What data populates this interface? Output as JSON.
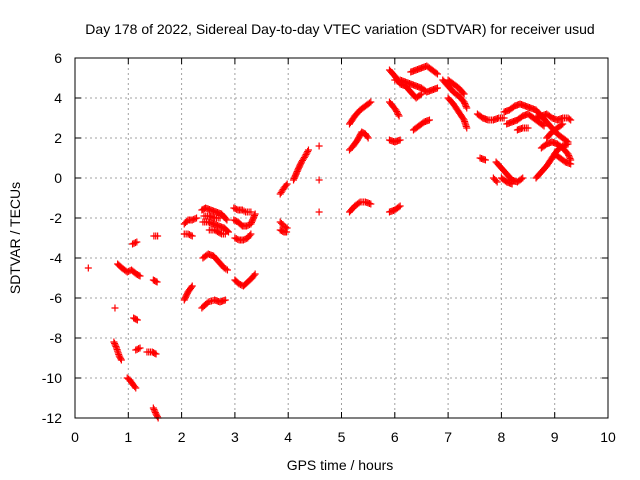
{
  "chart_data": {
    "type": "scatter",
    "title": "Day 178 of 2022, Sidereal Day-to-day VTEC variation (SDTVAR) for receiver usud",
    "xlabel": "GPS time / hours",
    "ylabel": "SDTVAR / TECUs",
    "xlim": [
      0,
      10
    ],
    "ylim": [
      -12,
      6
    ],
    "xticks": [
      "0",
      "1",
      "2",
      "3",
      "4",
      "5",
      "6",
      "7",
      "8",
      "9",
      "10"
    ],
    "yticks": [
      "-12",
      "-10",
      "-8",
      "-6",
      "-4",
      "-2",
      "0",
      "2",
      "4",
      "6"
    ],
    "grid": true,
    "marker": "+",
    "color": "#ff0000",
    "series": [
      {
        "name": "SDTVAR",
        "segments": [
          [
            [
              0.25,
              -4.5
            ]
          ],
          [
            [
              0.75,
              -6.5
            ]
          ],
          [
            [
              0.73,
              -8.2
            ],
            [
              0.78,
              -8.5
            ],
            [
              0.83,
              -8.9
            ],
            [
              0.87,
              -9.1
            ]
          ],
          [
            [
              0.8,
              -4.3
            ],
            [
              0.88,
              -4.5
            ],
            [
              0.98,
              -4.7
            ],
            [
              1.06,
              -4.6
            ],
            [
              1.15,
              -4.8
            ],
            [
              1.22,
              -4.9
            ]
          ],
          [
            [
              0.98,
              -10.0
            ],
            [
              1.03,
              -10.1
            ],
            [
              1.08,
              -10.3
            ],
            [
              1.14,
              -10.5
            ]
          ],
          [
            [
              1.1,
              -7.0
            ],
            [
              1.17,
              -7.1
            ]
          ],
          [
            [
              1.08,
              -3.3
            ],
            [
              1.16,
              -3.2
            ]
          ],
          [
            [
              1.14,
              -8.6
            ],
            [
              1.22,
              -8.5
            ]
          ],
          [
            [
              1.35,
              -8.7
            ],
            [
              1.45,
              -8.7
            ],
            [
              1.52,
              -8.8
            ]
          ],
          [
            [
              1.47,
              -11.5
            ],
            [
              1.52,
              -11.8
            ],
            [
              1.56,
              -12.0
            ]
          ],
          [
            [
              1.47,
              -5.1
            ],
            [
              1.54,
              -5.2
            ]
          ],
          [
            [
              1.48,
              -2.9
            ],
            [
              1.55,
              -2.9
            ]
          ],
          [
            [
              2.05,
              -6.1
            ],
            [
              2.12,
              -5.7
            ],
            [
              2.2,
              -5.4
            ]
          ],
          [
            [
              2.05,
              -2.3
            ],
            [
              2.12,
              -2.1
            ],
            [
              2.2,
              -2.1
            ],
            [
              2.28,
              -2.0
            ]
          ],
          [
            [
              2.05,
              -2.8
            ],
            [
              2.12,
              -2.8
            ],
            [
              2.2,
              -2.9
            ]
          ],
          [
            [
              2.38,
              -6.5
            ],
            [
              2.5,
              -6.2
            ],
            [
              2.62,
              -6.1
            ],
            [
              2.72,
              -6.2
            ],
            [
              2.82,
              -6.1
            ]
          ],
          [
            [
              2.4,
              -4.0
            ],
            [
              2.5,
              -3.8
            ],
            [
              2.6,
              -3.9
            ],
            [
              2.7,
              -4.2
            ],
            [
              2.8,
              -4.5
            ],
            [
              2.86,
              -4.6
            ]
          ],
          [
            [
              2.38,
              -1.6
            ],
            [
              2.45,
              -1.5
            ],
            [
              2.55,
              -1.6
            ],
            [
              2.65,
              -1.7
            ],
            [
              2.75,
              -1.8
            ],
            [
              2.85,
              -2.1
            ]
          ],
          [
            [
              2.4,
              -2.2
            ],
            [
              2.5,
              -2.2
            ],
            [
              2.6,
              -2.3
            ],
            [
              2.7,
              -2.4
            ],
            [
              2.8,
              -2.5
            ],
            [
              2.88,
              -2.7
            ]
          ],
          [
            [
              2.42,
              -1.9
            ],
            [
              2.52,
              -1.9
            ],
            [
              2.62,
              -2.0
            ],
            [
              2.72,
              -2.0
            ]
          ],
          [
            [
              2.52,
              -2.6
            ],
            [
              2.62,
              -2.6
            ],
            [
              2.75,
              -2.8
            ],
            [
              2.82,
              -2.8
            ]
          ],
          [
            [
              2.98,
              -1.5
            ],
            [
              3.06,
              -1.6
            ],
            [
              3.14,
              -1.6
            ],
            [
              3.2,
              -1.7
            ],
            [
              3.3,
              -1.7
            ]
          ],
          [
            [
              2.98,
              -2.1
            ],
            [
              3.06,
              -2.2
            ],
            [
              3.14,
              -2.4
            ],
            [
              3.22,
              -2.4
            ],
            [
              3.3,
              -2.3
            ],
            [
              3.38,
              -1.8
            ]
          ],
          [
            [
              3.0,
              -3.0
            ],
            [
              3.08,
              -3.1
            ],
            [
              3.16,
              -3.1
            ],
            [
              3.24,
              -3.0
            ],
            [
              3.3,
              -2.8
            ]
          ],
          [
            [
              3.0,
              -5.1
            ],
            [
              3.08,
              -5.3
            ],
            [
              3.16,
              -5.4
            ],
            [
              3.24,
              -5.2
            ],
            [
              3.32,
              -5.0
            ],
            [
              3.38,
              -4.8
            ]
          ],
          [
            [
              3.85,
              -0.8
            ],
            [
              3.92,
              -0.5
            ],
            [
              3.98,
              -0.3
            ]
          ],
          [
            [
              3.85,
              -2.2
            ],
            [
              3.92,
              -2.4
            ],
            [
              3.98,
              -2.5
            ]
          ],
          [
            [
              3.85,
              -2.6
            ],
            [
              3.92,
              -2.7
            ],
            [
              3.97,
              -2.7
            ]
          ],
          [
            [
              4.1,
              -0.1
            ],
            [
              4.18,
              0.4
            ],
            [
              4.25,
              0.8
            ],
            [
              4.32,
              1.1
            ],
            [
              4.38,
              1.4
            ]
          ],
          [
            [
              4.58,
              1.6
            ]
          ],
          [
            [
              4.58,
              -0.1
            ]
          ],
          [
            [
              4.58,
              -1.7
            ]
          ],
          [
            [
              5.15,
              1.4
            ],
            [
              5.22,
              1.6
            ],
            [
              5.3,
              1.9
            ],
            [
              5.38,
              2.3
            ],
            [
              5.45,
              2.2
            ],
            [
              5.5,
              2.0
            ]
          ],
          [
            [
              5.15,
              2.7
            ],
            [
              5.25,
              3.1
            ],
            [
              5.35,
              3.4
            ],
            [
              5.45,
              3.6
            ],
            [
              5.55,
              3.8
            ]
          ],
          [
            [
              5.15,
              -1.7
            ],
            [
              5.25,
              -1.4
            ],
            [
              5.35,
              -1.2
            ],
            [
              5.45,
              -1.2
            ],
            [
              5.55,
              -1.3
            ]
          ],
          [
            [
              5.9,
              1.9
            ],
            [
              6.0,
              1.8
            ],
            [
              6.1,
              1.9
            ]
          ],
          [
            [
              5.9,
              -1.7
            ],
            [
              6.0,
              -1.6
            ],
            [
              6.1,
              -1.4
            ]
          ],
          [
            [
              5.9,
              3.8
            ],
            [
              5.96,
              3.6
            ],
            [
              6.02,
              3.4
            ],
            [
              6.08,
              3.1
            ]
          ],
          [
            [
              5.9,
              5.4
            ],
            [
              6.0,
              5.1
            ],
            [
              6.1,
              4.7
            ],
            [
              6.2,
              4.6
            ],
            [
              6.3,
              4.3
            ],
            [
              6.4,
              4.0
            ],
            [
              6.5,
              4.2
            ]
          ],
          [
            [
              6.0,
              4.9
            ],
            [
              6.1,
              4.9
            ],
            [
              6.2,
              4.8
            ],
            [
              6.3,
              4.7
            ],
            [
              6.4,
              4.6
            ],
            [
              6.5,
              4.5
            ],
            [
              6.6,
              4.3
            ],
            [
              6.7,
              4.4
            ],
            [
              6.8,
              4.5
            ]
          ],
          [
            [
              6.3,
              5.3
            ],
            [
              6.4,
              5.4
            ],
            [
              6.5,
              5.5
            ],
            [
              6.6,
              5.6
            ],
            [
              6.7,
              5.4
            ],
            [
              6.8,
              5.2
            ]
          ],
          [
            [
              6.35,
              2.4
            ],
            [
              6.45,
              2.6
            ],
            [
              6.55,
              2.8
            ],
            [
              6.65,
              2.9
            ]
          ],
          [
            [
              6.9,
              4.9
            ],
            [
              7.0,
              4.6
            ],
            [
              7.1,
              4.3
            ],
            [
              7.2,
              4.1
            ],
            [
              7.3,
              3.8
            ],
            [
              7.35,
              3.5
            ]
          ],
          [
            [
              7.0,
              4.0
            ],
            [
              7.1,
              3.7
            ],
            [
              7.2,
              3.3
            ],
            [
              7.3,
              2.9
            ],
            [
              7.35,
              2.5
            ]
          ],
          [
            [
              7.0,
              4.9
            ],
            [
              7.1,
              4.7
            ],
            [
              7.2,
              4.5
            ],
            [
              7.3,
              4.2
            ]
          ],
          [
            [
              7.55,
              3.2
            ],
            [
              7.65,
              3.0
            ],
            [
              7.75,
              2.9
            ],
            [
              7.85,
              2.9
            ],
            [
              7.95,
              3.0
            ],
            [
              8.05,
              3.0
            ]
          ],
          [
            [
              7.6,
              1.0
            ],
            [
              7.7,
              0.9
            ]
          ],
          [
            [
              7.85,
              0.0
            ],
            [
              7.92,
              -0.2
            ]
          ],
          [
            [
              7.9,
              0.8
            ],
            [
              8.0,
              0.5
            ],
            [
              8.1,
              0.2
            ],
            [
              8.2,
              -0.1
            ],
            [
              8.3,
              -0.2
            ],
            [
              8.4,
              0.0
            ]
          ],
          [
            [
              8.0,
              0.0
            ],
            [
              8.1,
              -0.2
            ],
            [
              8.2,
              -0.3
            ]
          ],
          [
            [
              8.05,
              3.3
            ],
            [
              8.15,
              3.4
            ],
            [
              8.25,
              3.6
            ],
            [
              8.35,
              3.7
            ],
            [
              8.45,
              3.6
            ],
            [
              8.55,
              3.5
            ],
            [
              8.65,
              3.4
            ],
            [
              8.75,
              3.1
            ],
            [
              8.85,
              2.8
            ],
            [
              8.95,
              2.5
            ],
            [
              9.05,
              2.2
            ],
            [
              9.15,
              2.0
            ],
            [
              9.25,
              1.8
            ]
          ],
          [
            [
              8.1,
              2.7
            ],
            [
              8.2,
              2.8
            ],
            [
              8.3,
              2.9
            ],
            [
              8.4,
              3.1
            ],
            [
              8.5,
              3.2
            ],
            [
              8.6,
              3.0
            ],
            [
              8.7,
              2.8
            ],
            [
              8.8,
              2.6
            ]
          ],
          [
            [
              8.3,
              2.4
            ],
            [
              8.4,
              2.5
            ],
            [
              8.5,
              2.5
            ]
          ],
          [
            [
              8.65,
              3.0
            ],
            [
              8.75,
              3.1
            ],
            [
              8.85,
              3.2
            ],
            [
              8.95,
              3.0
            ],
            [
              9.05,
              2.9
            ],
            [
              9.15,
              3.0
            ],
            [
              9.25,
              3.0
            ],
            [
              9.3,
              2.9
            ]
          ],
          [
            [
              8.65,
              0.0
            ],
            [
              8.75,
              0.3
            ],
            [
              8.85,
              0.6
            ],
            [
              8.95,
              1.0
            ],
            [
              9.05,
              1.4
            ],
            [
              9.15,
              1.6
            ],
            [
              9.25,
              1.7
            ]
          ],
          [
            [
              8.75,
              1.5
            ],
            [
              8.85,
              1.7
            ],
            [
              8.95,
              1.8
            ],
            [
              9.05,
              1.7
            ],
            [
              9.15,
              1.5
            ],
            [
              9.25,
              1.2
            ],
            [
              9.3,
              0.9
            ]
          ],
          [
            [
              8.85,
              2.0
            ],
            [
              8.95,
              2.3
            ],
            [
              9.05,
              2.5
            ],
            [
              9.15,
              2.7
            ]
          ],
          [
            [
              9.0,
              1.2
            ],
            [
              9.1,
              1.0
            ],
            [
              9.2,
              0.8
            ],
            [
              9.3,
              0.7
            ]
          ]
        ]
      }
    ]
  }
}
